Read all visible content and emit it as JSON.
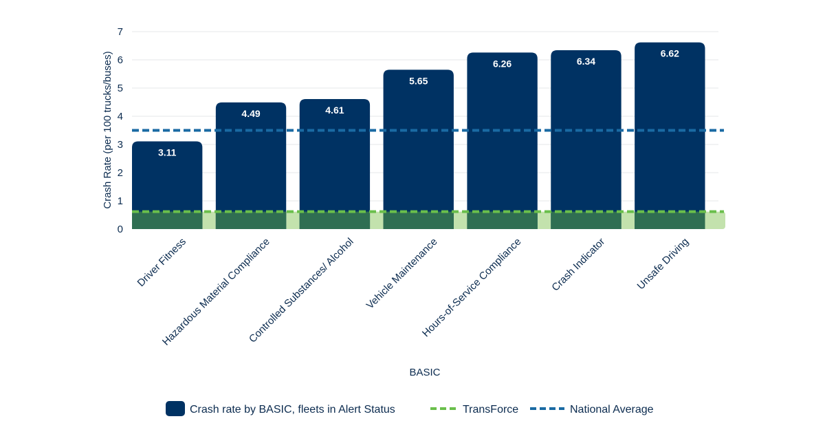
{
  "chart_data": {
    "type": "bar",
    "xlabel": "BASIC",
    "ylabel": "Crash Rate (per 100 trucks/buses)",
    "ylim": [
      0,
      7
    ],
    "yticks": [
      0,
      1,
      2,
      3,
      4,
      5,
      6,
      7
    ],
    "grid": true,
    "legend_position": "bottom",
    "categories": [
      "Driver Fitness",
      "Hazardous Material Compliance",
      "Controlled Substances/ Alcohol",
      "Vehicle Maintenance",
      "Hours-of-Service Compliance",
      "Crash Indicator",
      "Unsafe Driving"
    ],
    "series": [
      {
        "name": "Crash rate by BASIC, fleets in Alert Status",
        "type": "bar",
        "color": "#003263",
        "values": [
          3.11,
          4.49,
          4.61,
          5.65,
          6.26,
          6.34,
          6.62
        ],
        "labels": [
          "3.11",
          "4.49",
          "4.61",
          "5.65",
          "6.26",
          "6.34",
          "6.62"
        ]
      },
      {
        "name": "TransForce",
        "type": "reference-line",
        "color": "#6abf4b",
        "value": 0.62
      },
      {
        "name": "National Average",
        "type": "reference-line",
        "color": "#1a6aa3",
        "value": 3.5
      }
    ]
  }
}
